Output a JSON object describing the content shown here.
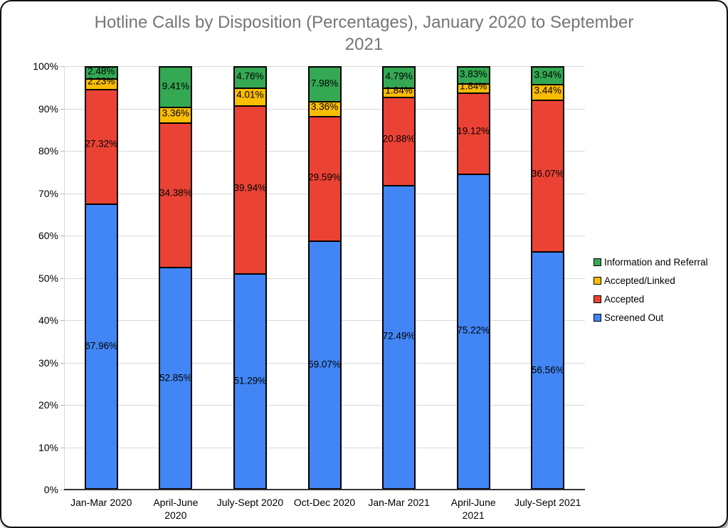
{
  "chart_data": {
    "type": "bar",
    "stacked": true,
    "units": "percent",
    "title": "Hotline Calls by Disposition (Percentages), January 2020 to September 2021",
    "title_color": "#757575",
    "categories": [
      "Jan-Mar 2020",
      "April-June 2020",
      "July-Sept 2020",
      "Oct-Dec 2020",
      "Jan-Mar 2021",
      "April-June 2021",
      "July-Sept 2021"
    ],
    "series_order": "bottom-to-top",
    "series": [
      {
        "name": "Screened Out",
        "color": "#4285F4",
        "values": [
          67.96,
          52.85,
          51.29,
          59.07,
          72.49,
          75.22,
          56.56
        ],
        "labels": [
          "67.96%",
          "52.85%",
          "51.29%",
          "59.07%",
          "72.49%",
          "75.22%",
          "56.56%"
        ]
      },
      {
        "name": "Accepted",
        "color": "#EA4335",
        "values": [
          27.32,
          34.38,
          39.94,
          29.59,
          20.88,
          19.12,
          36.07
        ],
        "labels": [
          "27.32%",
          "34.38%",
          "39.94%",
          "29.59%",
          "20.88%",
          "19.12%",
          "36.07%"
        ]
      },
      {
        "name": "Accepted/Linked",
        "color": "#FBBC04",
        "values": [
          2.23,
          3.36,
          4.01,
          3.36,
          1.84,
          1.84,
          3.44
        ],
        "labels": [
          "2.23%",
          "3.36%",
          "4.01%",
          "3.36%",
          "1.84%",
          "1.84%",
          "3.44%"
        ]
      },
      {
        "name": "Information and Referral",
        "color": "#34A853",
        "values": [
          2.48,
          9.41,
          4.76,
          7.98,
          4.79,
          3.83,
          3.94
        ],
        "labels": [
          "2.48%",
          "9.41%",
          "4.76%",
          "7.98%",
          "4.79%",
          "3.83%",
          "3.94%"
        ]
      }
    ],
    "xlabel": "",
    "ylabel": "",
    "ylim": [
      0,
      100
    ],
    "yticks": [
      "0%",
      "10%",
      "20%",
      "30%",
      "40%",
      "50%",
      "60%",
      "70%",
      "80%",
      "90%",
      "100%"
    ],
    "grid": true,
    "gridline_color": "#d9d9d9",
    "bar_border_color": "#000000",
    "legend_position": "right",
    "legend_items_top_to_bottom": [
      "Information and Referral",
      "Accepted/Linked",
      "Accepted",
      "Screened Out"
    ]
  }
}
